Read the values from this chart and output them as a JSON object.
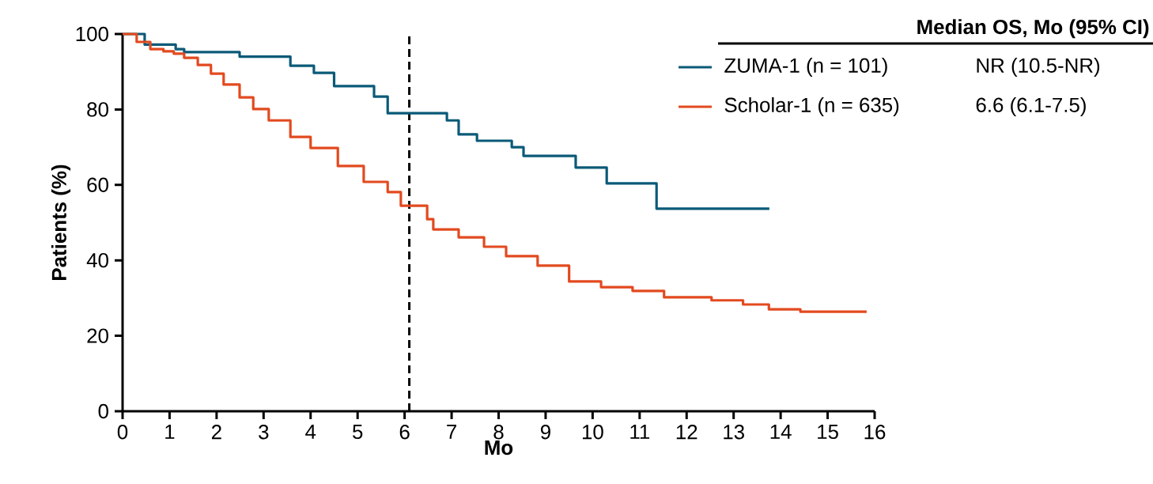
{
  "chart_data": {
    "type": "step",
    "xlabel": "Mo",
    "ylabel": "Patients (%)",
    "legend_title": "Median OS, Mo (95% CI)",
    "xlim": [
      0,
      16
    ],
    "xticks": [
      0,
      1,
      2,
      3,
      4,
      5,
      6,
      7,
      8,
      9,
      10,
      11,
      12,
      13,
      14,
      15,
      16
    ],
    "ylim": [
      0,
      100
    ],
    "yticks": [
      0,
      20,
      40,
      60,
      80,
      100
    ],
    "legend": "top right",
    "series": [
      {
        "name": "ZUMA-1 (n = 101)",
        "color": "#0b5a78",
        "x": [
          0,
          0.47,
          1.13,
          1.31,
          2.49,
          3.57,
          4.07,
          4.5,
          5.35,
          5.64,
          6.9,
          7.15,
          7.54,
          8.28,
          8.53,
          9.64,
          10.3,
          11.36,
          13.76
        ],
        "values": [
          100,
          97.2,
          96,
          95.2,
          94,
          91.6,
          89.7,
          86.2,
          83.4,
          79,
          77.1,
          73.4,
          71.7,
          70,
          67.7,
          64.6,
          60.4,
          53.7,
          53.7
        ]
      },
      {
        "name": "Scholar-1 (n = 635)",
        "color": "#e24a1f",
        "x": [
          0,
          0.3,
          0.59,
          0.87,
          1.09,
          1.31,
          1.6,
          1.88,
          2.15,
          2.49,
          2.78,
          3.11,
          3.57,
          4,
          4.58,
          5.13,
          5.64,
          5.92,
          6.48,
          6.61,
          7.15,
          7.69,
          8.16,
          8.83,
          9.5,
          10.18,
          10.85,
          11.52,
          12.53,
          13.2,
          13.75,
          14.42,
          15.83
        ],
        "values": [
          100,
          97.9,
          96,
          95.4,
          94.8,
          93.7,
          91.8,
          89.5,
          86.6,
          83.2,
          80.1,
          77.1,
          72.7,
          69.8,
          65,
          60.8,
          58.1,
          54.5,
          50.9,
          48.2,
          46.1,
          43.6,
          41.1,
          38.6,
          34.4,
          32.9,
          31.9,
          30.2,
          29.4,
          28.3,
          27,
          26.4,
          26.4
        ]
      }
    ],
    "ref_lines": [
      {
        "axis": "x",
        "value": 6.1,
        "color": "#000000",
        "line_style": "dashed"
      }
    ],
    "annotations": [
      "NR (10.5-NR)",
      "6.6 (6.1-7.5)"
    ]
  }
}
